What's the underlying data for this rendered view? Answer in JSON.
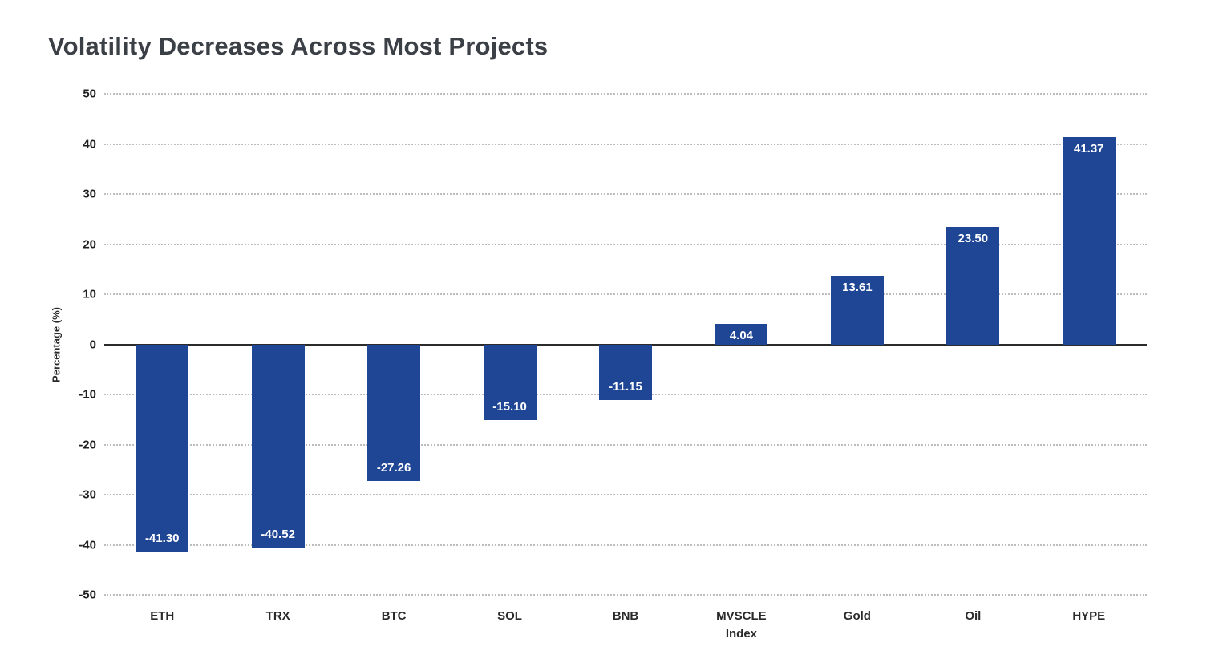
{
  "title": "Volatility Decreases Across Most Projects",
  "chart_data": {
    "type": "bar",
    "categories": [
      "ETH",
      "TRX",
      "BTC",
      "SOL",
      "BNB",
      "MVSCLE Index",
      "Gold",
      "Oil",
      "HYPE"
    ],
    "values": [
      -41.3,
      -40.52,
      -27.26,
      -15.1,
      -11.15,
      4.04,
      13.61,
      23.5,
      41.37
    ],
    "value_labels": [
      "-41.30",
      "-40.52",
      "-27.26",
      "-15.10",
      "-11.15",
      "4.04",
      "13.61",
      "23.50",
      "41.37"
    ],
    "xlabel": "",
    "ylabel": "Percentage (%)",
    "ylim": [
      -50,
      50
    ],
    "yticks": [
      50,
      40,
      30,
      20,
      10,
      0,
      -10,
      -20,
      -30,
      -40,
      -50
    ],
    "grid": "horizontal-dotted",
    "legend": "none",
    "bar_color": "#1F4694",
    "value_label_color": "#ffffff"
  }
}
